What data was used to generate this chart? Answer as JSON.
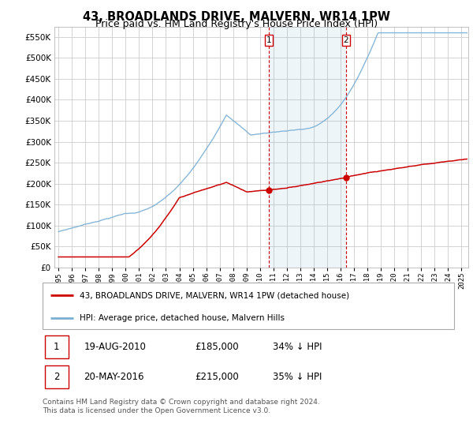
{
  "title": "43, BROADLANDS DRIVE, MALVERN, WR14 1PW",
  "subtitle": "Price paid vs. HM Land Registry's House Price Index (HPI)",
  "legend_line1": "43, BROADLANDS DRIVE, MALVERN, WR14 1PW (detached house)",
  "legend_line2": "HPI: Average price, detached house, Malvern Hills",
  "footnote": "Contains HM Land Registry data © Crown copyright and database right 2024.\nThis data is licensed under the Open Government Licence v3.0.",
  "table_rows": [
    {
      "num": "1",
      "date": "19-AUG-2010",
      "price": "£185,000",
      "hpi": "34% ↓ HPI"
    },
    {
      "num": "2",
      "date": "20-MAY-2016",
      "price": "£215,000",
      "hpi": "35% ↓ HPI"
    }
  ],
  "vline1_x": 2010.64,
  "vline2_x": 2016.39,
  "point1_x": 2010.64,
  "point1_y": 185000,
  "point2_x": 2016.39,
  "point2_y": 215000,
  "red_color": "#cc0000",
  "blue_color": "#7aafd4",
  "vline_color": "#cc0000",
  "grid_color": "#cccccc",
  "ylim": [
    0,
    575000
  ],
  "xlim": [
    1994.7,
    2025.5
  ],
  "yticks": [
    0,
    50000,
    100000,
    150000,
    200000,
    250000,
    300000,
    350000,
    400000,
    450000,
    500000,
    550000
  ],
  "title_fontsize": 10.5,
  "subtitle_fontsize": 9
}
